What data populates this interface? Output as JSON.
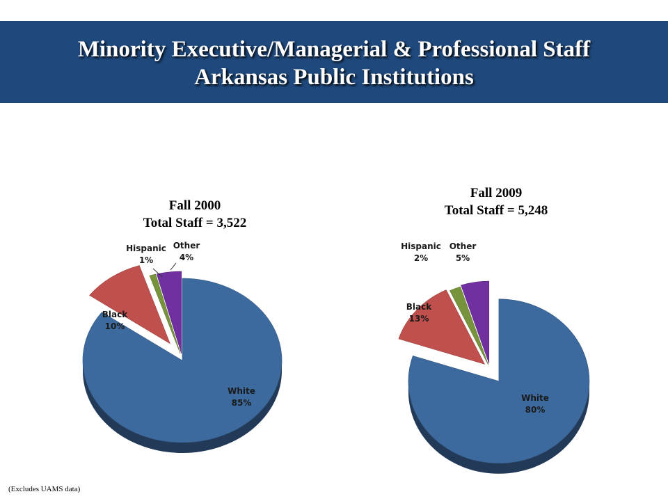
{
  "header": {
    "title_line1": "Minority Executive/Managerial & Professional Staff",
    "title_line2": "Arkansas Public Institutions"
  },
  "footnote": "(Excludes UAMS data)",
  "colors": {
    "banner": "#1f497d",
    "White": "#3d6a9e",
    "Black": "#c0504d",
    "Hispanic": "#77933c",
    "Other": "#7030a0"
  },
  "chart_data": [
    {
      "type": "pie",
      "title_line1": "Fall 2000",
      "title_line2": "Total Staff = 3,522",
      "slices": [
        {
          "label": "White",
          "value": 85,
          "value_label": "85%"
        },
        {
          "label": "Black",
          "value": 10,
          "value_label": "10%"
        },
        {
          "label": "Hispanic",
          "value": 1,
          "value_label": "1%"
        },
        {
          "label": "Other",
          "value": 4,
          "value_label": "4%"
        }
      ]
    },
    {
      "type": "pie",
      "title_line1": "Fall 2009",
      "title_line2": "Total Staff = 5,248",
      "slices": [
        {
          "label": "White",
          "value": 80,
          "value_label": "80%"
        },
        {
          "label": "Black",
          "value": 13,
          "value_label": "13%"
        },
        {
          "label": "Hispanic",
          "value": 2,
          "value_label": "2%"
        },
        {
          "label": "Other",
          "value": 5,
          "value_label": "5%"
        }
      ]
    }
  ]
}
